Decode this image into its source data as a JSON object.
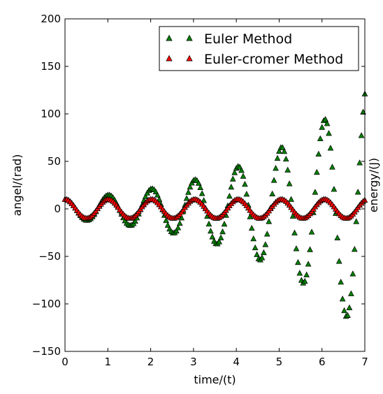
{
  "chart_data": {
    "type": "scatter",
    "xlabel": "time/(t)",
    "ylabel": "angel/(rad)",
    "ylabel_right": "energy/(J)",
    "xlim": [
      0,
      7
    ],
    "ylim": [
      -150,
      200
    ],
    "x_ticks": [
      "0",
      "1",
      "2",
      "3",
      "4",
      "5",
      "6",
      "7"
    ],
    "y_ticks": [
      "−150",
      "−100",
      "−50",
      "0",
      "50",
      "100",
      "150",
      "200"
    ],
    "grid": false,
    "legend_position": "top-right",
    "series": [
      {
        "name": "Euler Method",
        "color": "#008000",
        "marker": "triangle-up",
        "model": "underdamped-growing-cosine",
        "amplitude_initial": 10,
        "growth_rate": 0.37,
        "period": 1.01,
        "sample_step": 0.04,
        "x_range": [
          0,
          7
        ]
      },
      {
        "name": "Euler-cromer Method",
        "color": "#ff0000",
        "marker": "triangle-up",
        "model": "cosine",
        "amplitude_initial": 10,
        "period": 1.01,
        "sample_step": 0.04,
        "x_range": [
          0,
          7
        ]
      }
    ]
  }
}
